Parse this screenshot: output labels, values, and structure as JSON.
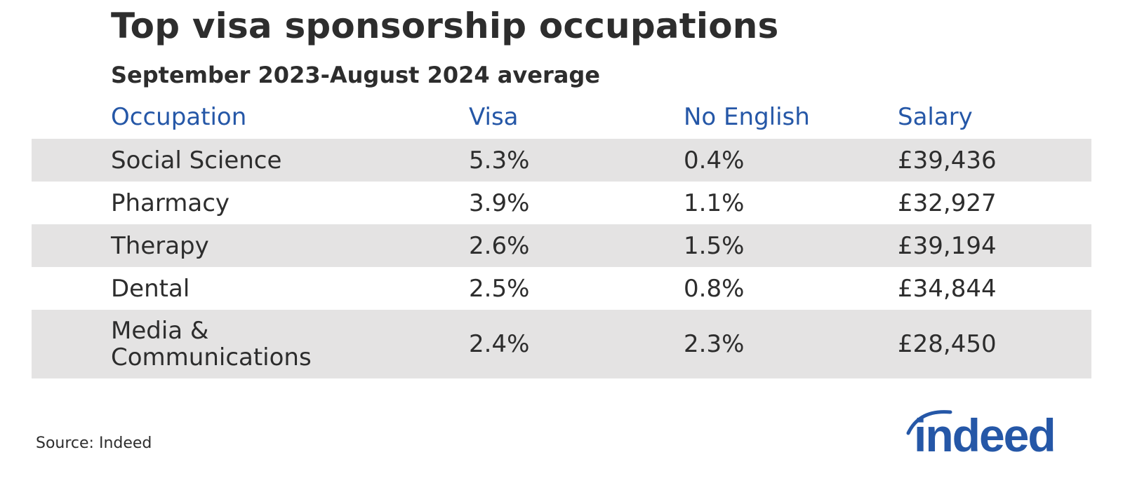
{
  "title": "Top visa sponsorship occupations",
  "subtitle": "September 2023-August 2024 average",
  "source": "Source: Indeed",
  "logo_text": "indeed",
  "colors": {
    "header_text": "#2557a7",
    "row_shade": "#e4e3e3",
    "logo": "#2557a7",
    "text": "#2d2d2d"
  },
  "chart_data": {
    "type": "table",
    "columns": [
      "Occupation",
      "Visa",
      "No English",
      "Salary"
    ],
    "rows": [
      {
        "occupation": "Social Science",
        "visa": "5.3%",
        "no_english": "0.4%",
        "salary": "£39,436"
      },
      {
        "occupation": "Pharmacy",
        "visa": "3.9%",
        "no_english": "1.1%",
        "salary": "£32,927"
      },
      {
        "occupation": "Therapy",
        "visa": "2.6%",
        "no_english": "1.5%",
        "salary": "£39,194"
      },
      {
        "occupation": "Dental",
        "visa": "2.5%",
        "no_english": "0.8%",
        "salary": "£34,844"
      },
      {
        "occupation": "Media & Communications",
        "visa": "2.4%",
        "no_english": "2.3%",
        "salary": "£28,450"
      }
    ]
  }
}
